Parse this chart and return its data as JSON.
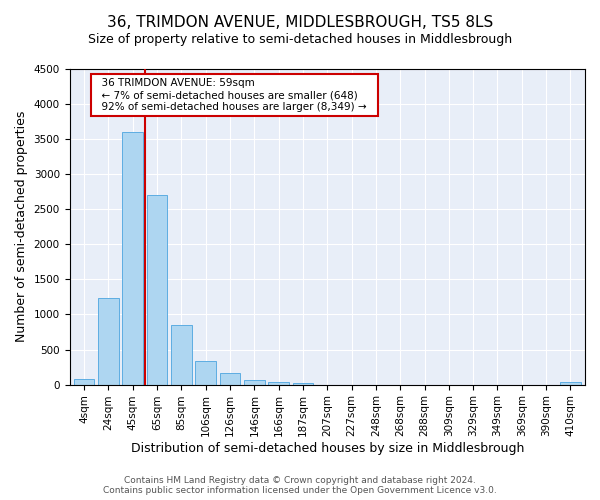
{
  "title": "36, TRIMDON AVENUE, MIDDLESBROUGH, TS5 8LS",
  "subtitle": "Size of property relative to semi-detached houses in Middlesbrough",
  "xlabel": "Distribution of semi-detached houses by size in Middlesbrough",
  "ylabel": "Number of semi-detached properties",
  "bar_labels": [
    "4sqm",
    "24sqm",
    "45sqm",
    "65sqm",
    "85sqm",
    "106sqm",
    "126sqm",
    "146sqm",
    "166sqm",
    "187sqm",
    "207sqm",
    "227sqm",
    "248sqm",
    "268sqm",
    "288sqm",
    "309sqm",
    "329sqm",
    "349sqm",
    "369sqm",
    "390sqm",
    "410sqm"
  ],
  "bar_values": [
    80,
    1240,
    3600,
    2700,
    850,
    330,
    165,
    60,
    35,
    20,
    0,
    0,
    0,
    0,
    0,
    0,
    0,
    0,
    0,
    0,
    30
  ],
  "bar_color": "#aed6f1",
  "bar_edge_color": "#5dade2",
  "vline_x": 2.5,
  "ylim": [
    0,
    4500
  ],
  "annotation_title": "36 TRIMDON AVENUE: 59sqm",
  "annotation_line1": "← 7% of semi-detached houses are smaller (648)",
  "annotation_line2": "92% of semi-detached houses are larger (8,349) →",
  "annotation_box_color": "#ffffff",
  "annotation_box_edge": "#cc0000",
  "footer_line1": "Contains HM Land Registry data © Crown copyright and database right 2024.",
  "footer_line2": "Contains public sector information licensed under the Open Government Licence v3.0.",
  "vline_color": "#cc0000",
  "title_fontsize": 11,
  "subtitle_fontsize": 9,
  "axis_label_fontsize": 9,
  "tick_fontsize": 7.5,
  "footer_fontsize": 6.5
}
